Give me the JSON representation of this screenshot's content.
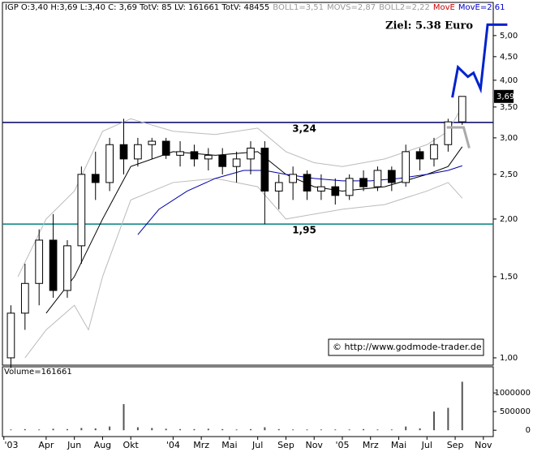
{
  "chart_data": {
    "type": "candlestick",
    "header": [
      {
        "text": "IGP O:3,40 H:3,69 L:3,40 C: 3,69 TotV: 85 LV: 161661 TotV: 48455",
        "color": "#000000"
      },
      {
        "text": "BOLL1=3,51",
        "color": "#999999"
      },
      {
        "text": "MOVS=2,87",
        "color": "#999999"
      },
      {
        "text": "BOLL2=2,22",
        "color": "#999999"
      },
      {
        "text": "MovE",
        "color": "#cc0000"
      },
      {
        "text": "MovE=2,61",
        "color": "#0000cc"
      }
    ],
    "log_scale": true,
    "xlim": [
      -0.1,
      34.7
    ],
    "xticks": [
      {
        "value": 0,
        "label": "'03"
      },
      {
        "value": 3,
        "label": "Apr"
      },
      {
        "value": 5,
        "label": "Jun"
      },
      {
        "value": 7,
        "label": "Aug"
      },
      {
        "value": 9,
        "label": "Okt"
      },
      {
        "value": 12,
        "label": "'04"
      },
      {
        "value": 14,
        "label": "Mrz"
      },
      {
        "value": 16,
        "label": "Mai"
      },
      {
        "value": 18,
        "label": "Jul"
      },
      {
        "value": 20,
        "label": "Sep"
      },
      {
        "value": 22,
        "label": "Nov"
      },
      {
        "value": 24,
        "label": "'05"
      },
      {
        "value": 26,
        "label": "Mrz"
      },
      {
        "value": 28,
        "label": "Mai"
      },
      {
        "value": 30,
        "label": "Jul"
      },
      {
        "value": 32,
        "label": "Sep"
      },
      {
        "value": 34,
        "label": "Nov"
      }
    ],
    "ylim": [
      0.964,
      5.9
    ],
    "yticks": [
      {
        "value": 1,
        "label": "1,00"
      },
      {
        "value": 1.5,
        "label": "1,50"
      },
      {
        "value": 2,
        "label": "2,00"
      },
      {
        "value": 2.5,
        "label": "2,50"
      },
      {
        "value": 3,
        "label": "3,00"
      },
      {
        "value": 3.5,
        "label": "3,50"
      },
      {
        "value": 4,
        "label": "4,00"
      },
      {
        "value": 4.5,
        "label": "4,50"
      },
      {
        "value": 5,
        "label": "5,00"
      }
    ],
    "x": [
      0.5,
      1.5,
      2.5,
      3.5,
      4.5,
      5.5,
      6.5,
      7.5,
      8.5,
      9.5,
      10.5,
      11.5,
      12.5,
      13.5,
      14.5,
      15.5,
      16.5,
      17.5,
      18.5,
      19.5,
      20.5,
      21.5,
      22.5,
      23.5,
      24.5,
      25.5,
      26.5,
      27.5,
      28.5,
      29.5,
      30.5,
      31.5,
      32.5
    ],
    "open": [
      1.0,
      1.25,
      1.45,
      1.8,
      1.4,
      1.75,
      2.5,
      2.4,
      2.9,
      2.7,
      2.9,
      2.95,
      2.75,
      2.8,
      2.7,
      2.75,
      2.6,
      2.7,
      2.85,
      2.3,
      2.4,
      2.5,
      2.3,
      2.35,
      2.25,
      2.45,
      2.35,
      2.55,
      2.4,
      2.8,
      2.7,
      2.9,
      3.25
    ],
    "high": [
      1.3,
      1.6,
      1.9,
      2.05,
      1.8,
      2.6,
      2.8,
      3.0,
      3.3,
      3.0,
      3.0,
      3.0,
      2.95,
      2.9,
      2.85,
      2.85,
      2.8,
      2.95,
      2.95,
      2.5,
      2.6,
      2.55,
      2.5,
      2.45,
      2.5,
      2.55,
      2.6,
      2.6,
      2.9,
      2.85,
      3.0,
      3.3,
      3.69
    ],
    "low": [
      0.95,
      1.15,
      1.3,
      1.35,
      1.35,
      1.6,
      2.2,
      2.3,
      2.5,
      2.6,
      2.7,
      2.7,
      2.6,
      2.6,
      2.55,
      2.5,
      2.4,
      2.5,
      1.95,
      2.1,
      2.2,
      2.2,
      2.2,
      2.15,
      2.2,
      2.3,
      2.3,
      2.3,
      2.35,
      2.55,
      2.6,
      2.8,
      3.2
    ],
    "close": [
      1.25,
      1.45,
      1.8,
      1.4,
      1.75,
      2.5,
      2.4,
      2.9,
      2.7,
      2.9,
      2.95,
      2.75,
      2.8,
      2.7,
      2.75,
      2.6,
      2.7,
      2.85,
      2.3,
      2.4,
      2.5,
      2.3,
      2.35,
      2.25,
      2.45,
      2.35,
      2.55,
      2.4,
      2.8,
      2.7,
      2.9,
      3.25,
      3.69
    ],
    "lines": [
      {
        "color": "#bbbbbb",
        "x": [
          1,
          3,
          5,
          7,
          9,
          12,
          15,
          18,
          20,
          22,
          24,
          27,
          30,
          31.5,
          32.5
        ],
        "values": [
          1.5,
          2.0,
          2.3,
          3.1,
          3.3,
          3.1,
          3.05,
          3.15,
          2.8,
          2.65,
          2.6,
          2.7,
          2.9,
          3.1,
          3.51
        ]
      },
      {
        "color": "#bbbbbb",
        "x": [
          1.5,
          3,
          5,
          6,
          7,
          9,
          12,
          15,
          18,
          20,
          22,
          24,
          27,
          30,
          31.5,
          32.5
        ],
        "values": [
          1.0,
          1.15,
          1.3,
          1.15,
          1.5,
          2.2,
          2.4,
          2.45,
          2.35,
          2.0,
          2.05,
          2.1,
          2.15,
          2.3,
          2.4,
          2.22
        ]
      },
      {
        "color": "#000000",
        "x": [
          3,
          5,
          7,
          9,
          12,
          15,
          18,
          20,
          22,
          24,
          27,
          30,
          31.5,
          32.5
        ],
        "values": [
          1.25,
          1.5,
          2.0,
          2.6,
          2.8,
          2.75,
          2.8,
          2.5,
          2.35,
          2.3,
          2.35,
          2.5,
          2.6,
          2.87
        ]
      },
      {
        "color": "#0000aa",
        "x": [
          9.5,
          11,
          13,
          15,
          17,
          18.5,
          20,
          22,
          24,
          26,
          28,
          30,
          31.5,
          32.5
        ],
        "values": [
          1.85,
          2.1,
          2.3,
          2.45,
          2.55,
          2.55,
          2.5,
          2.45,
          2.42,
          2.42,
          2.45,
          2.5,
          2.55,
          2.61
        ]
      }
    ],
    "projections": [
      {
        "color": "#0022cc",
        "width": 3,
        "x": [
          31.8,
          32.2,
          32.9,
          33.3,
          33.8,
          34.3,
          35.7
        ],
        "values": [
          3.67,
          4.27,
          4.07,
          4.15,
          3.83,
          5.28,
          5.28
        ]
      },
      {
        "color": "#aaaaaa",
        "width": 3,
        "x": [
          31.4,
          32.6,
          33.0
        ],
        "values": [
          3.16,
          3.16,
          2.85
        ]
      }
    ],
    "levels": [
      {
        "value": 3.24,
        "label": "3,24",
        "color": "#000066"
      },
      {
        "value": 1.95,
        "label": "1,95",
        "color": "#008080"
      }
    ],
    "target_label": "Ziel: 5.38 Euro",
    "last_price": {
      "value": 3.69,
      "label": "3,69"
    },
    "source": "© http://www.godmode-trader.de",
    "volume": {
      "title": "Volume=161661",
      "ylim": [
        -170000,
        1700000
      ],
      "yticks": [
        0,
        500000,
        1000000
      ],
      "values": [
        20000,
        30000,
        20000,
        40000,
        30000,
        60000,
        50000,
        100000,
        700000,
        80000,
        60000,
        40000,
        30000,
        30000,
        40000,
        30000,
        20000,
        30000,
        80000,
        30000,
        20000,
        20000,
        20000,
        20000,
        20000,
        30000,
        20000,
        20000,
        100000,
        50000,
        500000,
        600000,
        1300000
      ]
    }
  }
}
